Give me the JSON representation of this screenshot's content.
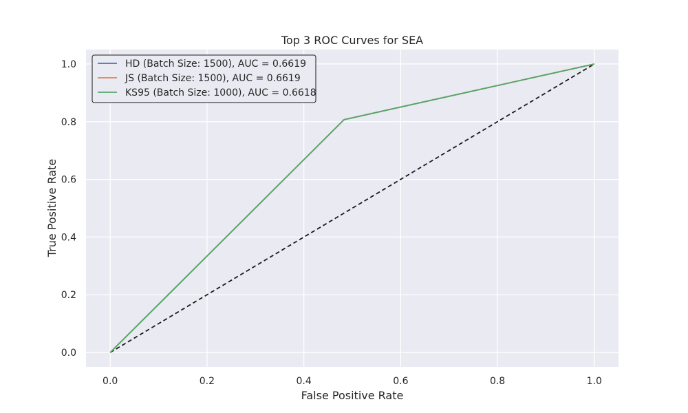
{
  "chart_data": {
    "type": "line",
    "title": "Top 3 ROC Curves for SEA",
    "xlabel": "False Positive Rate",
    "ylabel": "True Positive Rate",
    "xlim": [
      -0.05,
      1.05
    ],
    "ylim": [
      -0.05,
      1.05
    ],
    "xticks": [
      "0.0",
      "0.2",
      "0.4",
      "0.6",
      "0.8",
      "1.0"
    ],
    "yticks": [
      "0.0",
      "0.2",
      "0.4",
      "0.6",
      "0.8",
      "1.0"
    ],
    "grid": true,
    "legend_position": "top-left",
    "series": [
      {
        "name": "HD (Batch Size: 1500), AUC = 0.6619",
        "color": "#4c72b0",
        "x": [
          0.0,
          0.483,
          1.0
        ],
        "y": [
          0.0,
          0.807,
          1.0
        ]
      },
      {
        "name": "JS (Batch Size: 1500), AUC = 0.6619",
        "color": "#dd8452",
        "x": [
          0.0,
          0.483,
          1.0
        ],
        "y": [
          0.0,
          0.807,
          1.0
        ]
      },
      {
        "name": "KS95 (Batch Size: 1000), AUC = 0.6618",
        "color": "#55a868",
        "x": [
          0.0,
          0.483,
          1.0
        ],
        "y": [
          0.0,
          0.807,
          1.0
        ]
      }
    ],
    "reference_line": {
      "x": [
        0.0,
        1.0
      ],
      "y": [
        0.0,
        1.0
      ],
      "color": "#1a1a1a",
      "style": "dashed"
    },
    "plot_background": "#eaeaf2",
    "grid_color": "#ffffff"
  }
}
